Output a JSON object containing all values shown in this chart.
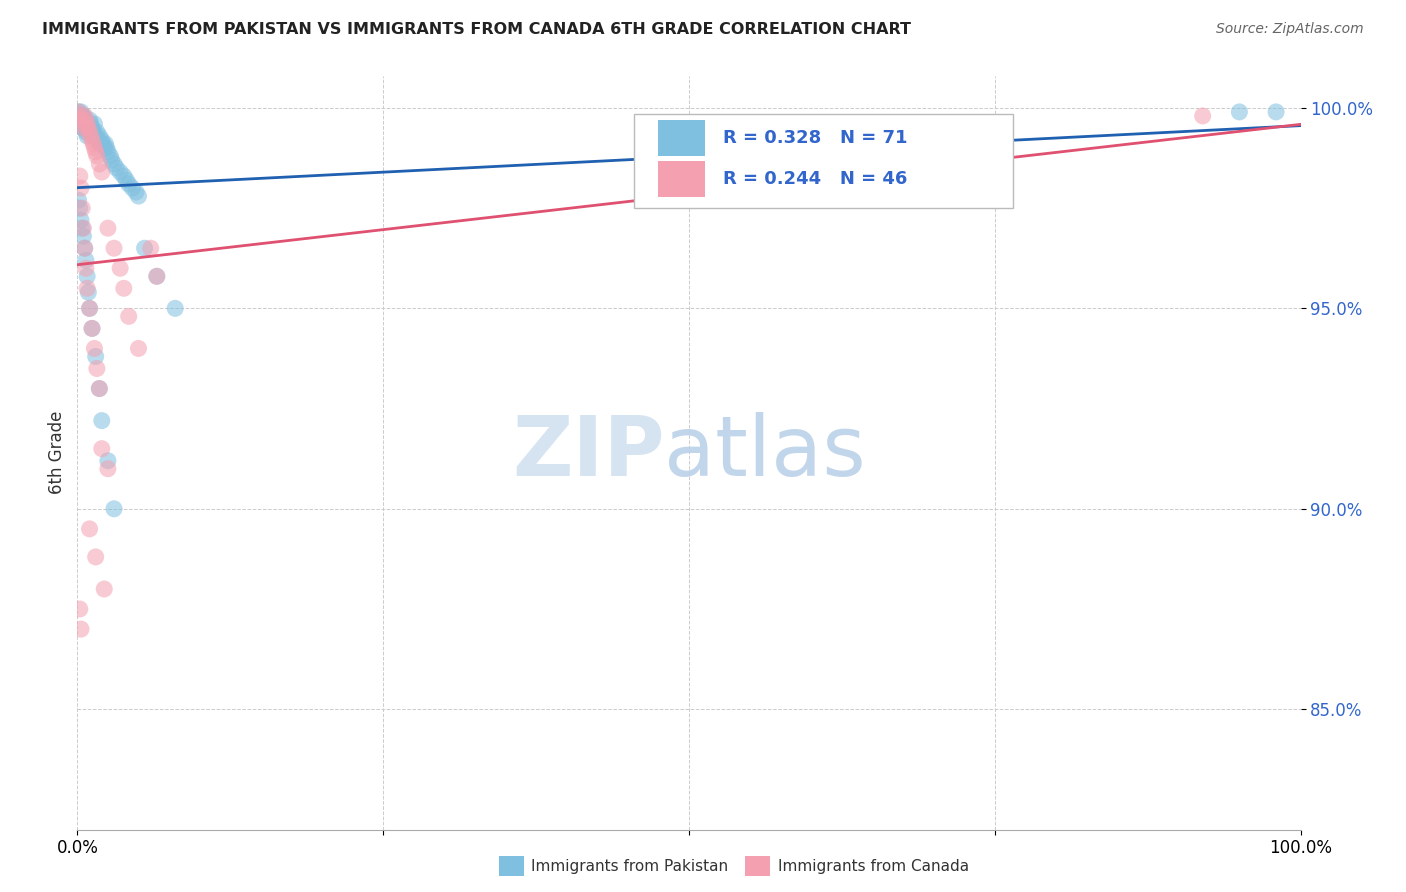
{
  "title": "IMMIGRANTS FROM PAKISTAN VS IMMIGRANTS FROM CANADA 6TH GRADE CORRELATION CHART",
  "source": "Source: ZipAtlas.com",
  "ylabel": "6th Grade",
  "xlim": [
    0.0,
    1.0
  ],
  "ylim": [
    0.82,
    1.008
  ],
  "ytick_labels": [
    "85.0%",
    "90.0%",
    "95.0%",
    "100.0%"
  ],
  "ytick_positions": [
    0.85,
    0.9,
    0.95,
    1.0
  ],
  "legend_labels": [
    "Immigrants from Pakistan",
    "Immigrants from Canada"
  ],
  "color_pakistan": "#7fbfdf",
  "color_canada": "#f4a0b0",
  "trendline_color_pakistan": "#2060b0",
  "trendline_color_canada": "#e05070",
  "pak_r": "0.328",
  "pak_n": "71",
  "can_r": "0.244",
  "can_n": "46"
}
